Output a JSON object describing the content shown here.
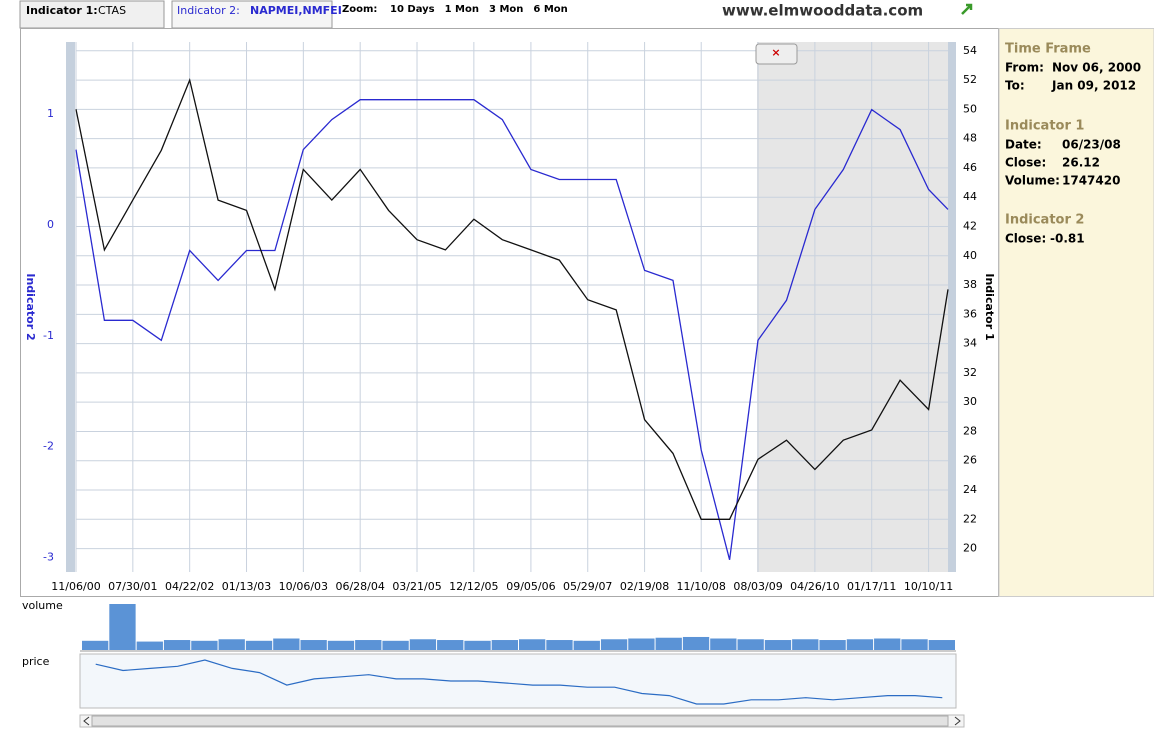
{
  "tabs": {
    "indicator1": {
      "label": "Indicator 1:",
      "value": "CTAS"
    },
    "indicator2": {
      "label": "Indicator 2:",
      "value": "NAPMEI,NMFEI"
    }
  },
  "zoom": {
    "label": "Zoom:",
    "options": [
      "10 Days",
      "1 Mon",
      "3 Mon",
      "6 Mon"
    ]
  },
  "site": "www.elmwooddata.com",
  "close_button": "×",
  "chart_data": {
    "type": "line",
    "y_label": "Indicator 2",
    "y2_label": "Indicator 1",
    "x": [
      "11/06/00",
      "03/19/01",
      "07/30/01",
      "12/10/01",
      "04/22/02",
      "09/02/02",
      "01/13/03",
      "05/26/03",
      "10/06/03",
      "02/16/04",
      "06/28/04",
      "11/08/04",
      "03/21/05",
      "08/01/05",
      "12/12/05",
      "04/24/06",
      "09/05/06",
      "01/16/07",
      "05/29/07",
      "10/09/07",
      "02/19/08",
      "07/01/08",
      "11/10/08",
      "03/23/09",
      "08/03/09",
      "12/14/09",
      "04/26/10",
      "09/06/10",
      "01/17/11",
      "05/30/11",
      "10/10/11",
      "01/09/12"
    ],
    "xlim": [
      "11/06/00",
      "01/09/12"
    ],
    "xticks": [
      "11/06/00",
      "07/30/01",
      "04/22/02",
      "01/13/03",
      "10/06/03",
      "06/28/04",
      "03/21/05",
      "12/12/05",
      "09/05/06",
      "05/29/07",
      "02/19/08",
      "11/10/08",
      "08/03/09",
      "04/26/10",
      "01/17/11",
      "10/10/11"
    ],
    "ylim": [
      -3.13,
      1.65
    ],
    "yticks": [
      -3,
      -2,
      -1,
      0,
      1
    ],
    "y2lim": [
      18.4,
      54.6
    ],
    "y2ticks": [
      20,
      22,
      24,
      26,
      28,
      30,
      32,
      34,
      36,
      38,
      40,
      42,
      44,
      46,
      48,
      50,
      52,
      54
    ],
    "grid": true,
    "series": [
      {
        "color": "#2a2ad0",
        "axis": "y",
        "values": [
          0.68,
          -0.86,
          -0.86,
          -1.04,
          -0.23,
          -0.5,
          -0.23,
          -0.23,
          0.68,
          0.95,
          1.13,
          1.13,
          1.13,
          1.13,
          1.13,
          0.95,
          0.5,
          0.41,
          0.41,
          0.41,
          -0.41,
          -0.5,
          -2.03,
          -3.02,
          -1.04,
          -0.68,
          0.14,
          0.5,
          1.04,
          0.86,
          0.32,
          0.14
        ]
      },
      {
        "color": "#111111",
        "axis": "y2",
        "values": [
          50,
          40.4,
          43.8,
          47.2,
          52,
          43.8,
          43.1,
          37.7,
          45.9,
          43.8,
          45.9,
          43.1,
          41.1,
          40.4,
          42.5,
          41.1,
          40.4,
          39.7,
          37,
          36.3,
          28.8,
          26.5,
          22,
          22,
          26.1,
          27.4,
          25.4,
          27.4,
          28.1,
          31.5,
          29.5,
          37.7
        ]
      }
    ]
  },
  "navigator": {
    "volume_label": "volume",
    "price_label": "price",
    "volume": [
      1.2,
      6,
      1.1,
      1.3,
      1.2,
      1.4,
      1.2,
      1.5,
      1.3,
      1.2,
      1.3,
      1.2,
      1.4,
      1.3,
      1.2,
      1.3,
      1.4,
      1.3,
      1.2,
      1.4,
      1.5,
      1.6,
      1.7,
      1.5,
      1.4,
      1.3,
      1.4,
      1.3,
      1.4,
      1.5,
      1.4,
      1.3
    ],
    "price": [
      48,
      45,
      46,
      47,
      50,
      46,
      44,
      38,
      41,
      42,
      43,
      41,
      41,
      40,
      40,
      39,
      38,
      38,
      37,
      37,
      34,
      33,
      29,
      29,
      31,
      31,
      32,
      31,
      32,
      33,
      33,
      32
    ]
  },
  "info_panel": {
    "time_frame": {
      "title": "Time Frame",
      "from_label": "From:",
      "from": "Nov 06, 2000",
      "to_label": "To:",
      "to": "Jan 09, 2012"
    },
    "indicator1": {
      "title": "Indicator 1",
      "date_label": "Date:",
      "date": "06/23/08",
      "close_label": "Close:",
      "close": "26.12",
      "volume_label": "Volume:",
      "volume": "1747420"
    },
    "indicator2": {
      "title": "Indicator 2",
      "close_label": "Close:",
      "close": "-0.81"
    }
  }
}
